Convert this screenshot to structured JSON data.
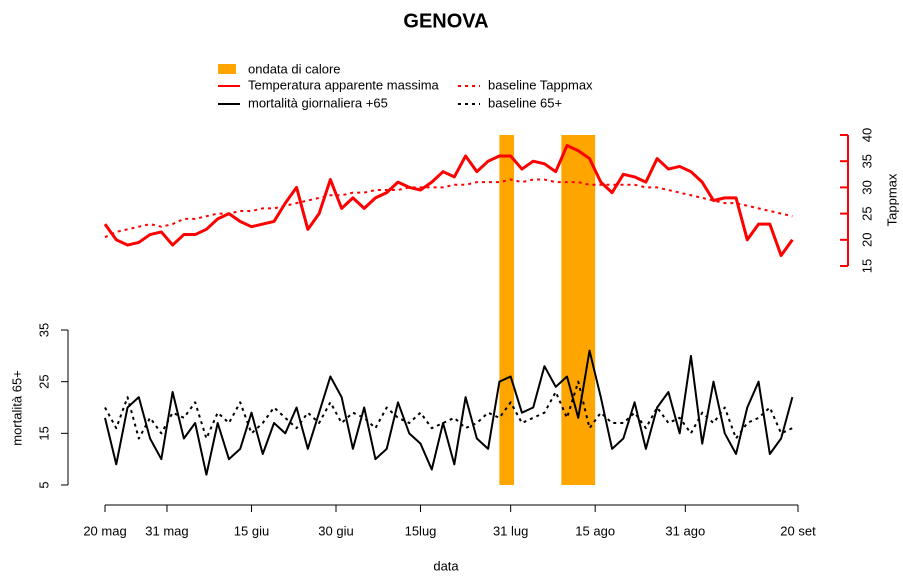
{
  "chart_data": {
    "type": "line",
    "title": "GENOVA",
    "xlabel": "data",
    "ylabel": "mortalità 65+",
    "y2label": "Tappmax",
    "x": [
      0,
      2,
      4,
      6,
      8,
      10,
      12,
      14,
      16,
      18,
      20,
      22,
      24,
      26,
      28,
      30,
      32,
      34,
      36,
      38,
      40,
      42,
      44,
      46,
      48,
      50,
      52,
      54,
      56,
      58,
      60,
      62,
      64,
      66,
      68,
      70,
      72,
      74,
      76,
      78,
      80,
      82,
      84,
      86,
      88,
      90,
      92,
      94,
      96,
      98,
      100,
      102,
      104,
      106,
      108,
      110,
      112,
      114,
      116,
      118,
      120,
      122
    ],
    "xlim": [
      0,
      123
    ],
    "xticks": [
      {
        "value": 0,
        "label": "20 mag"
      },
      {
        "value": 11,
        "label": "31 mag"
      },
      {
        "value": 26,
        "label": "15 giu"
      },
      {
        "value": 41,
        "label": "30 giu"
      },
      {
        "value": 56,
        "label": "15lug"
      },
      {
        "value": 72,
        "label": "31 lug"
      },
      {
        "value": 87,
        "label": "15 ago"
      },
      {
        "value": 103,
        "label": "31 ago"
      },
      {
        "value": 123,
        "label": "20 set"
      }
    ],
    "ylim": [
      5,
      35
    ],
    "yticks": [
      5,
      15,
      25,
      35
    ],
    "y2lim": [
      15,
      40
    ],
    "y2ticks": [
      15,
      20,
      25,
      30,
      35,
      40
    ],
    "y2color": "#ff0000",
    "heatwaves": {
      "name": "ondata di calore",
      "color": "#ffa500",
      "ranges": [
        [
          70,
          72.6
        ],
        [
          81,
          87
        ]
      ]
    },
    "series": [
      {
        "name": "Temperatura apparente massima",
        "color": "#ff0000",
        "axis": "y2",
        "dash": false,
        "values": [
          23,
          20,
          19,
          19.5,
          21,
          21.5,
          19,
          21,
          21,
          22,
          24,
          25,
          23.5,
          22.5,
          23,
          23.5,
          27,
          30,
          22,
          25,
          31.5,
          26,
          28,
          26,
          28,
          29,
          31,
          30,
          29.5,
          31,
          33,
          32,
          36,
          33,
          35,
          36,
          36,
          33.5,
          35,
          34.5,
          33,
          38,
          37,
          35.5,
          31,
          29,
          32.5,
          32,
          31,
          35.5,
          33.5,
          34,
          33,
          31,
          27.5,
          28,
          28,
          20,
          23,
          23,
          17,
          20
        ]
      },
      {
        "name": "mortalità giornaliera +65",
        "color": "#000000",
        "axis": "y",
        "dash": false,
        "values": [
          18,
          9,
          20,
          22,
          14,
          10,
          23,
          14,
          17,
          7,
          17,
          10,
          12,
          19,
          11,
          17,
          15,
          20,
          12,
          19,
          26,
          22,
          12,
          20,
          10,
          12,
          21,
          15,
          13,
          8,
          17,
          9,
          22,
          14,
          12,
          25,
          26,
          19,
          20,
          28,
          24,
          26,
          18,
          31,
          22,
          12,
          14,
          21,
          12,
          20,
          23,
          15,
          30,
          13,
          25,
          15,
          11,
          20,
          25,
          11,
          14,
          22
        ]
      },
      {
        "name": "baseline Tappmax",
        "color": "#ff0000",
        "axis": "y2",
        "dash": true,
        "values": [
          20.5,
          21.5,
          22,
          22.5,
          23,
          22.5,
          23,
          24,
          24,
          24.5,
          25,
          25,
          25.5,
          25.5,
          26,
          26,
          26.5,
          27,
          27.5,
          28,
          28.5,
          28.5,
          29,
          29,
          29.5,
          29.5,
          29.5,
          30,
          30,
          30,
          30,
          30.5,
          30.5,
          31,
          31,
          31,
          31.5,
          31,
          31.5,
          31.5,
          31,
          31,
          31,
          30.5,
          30.5,
          30.5,
          30.5,
          30.5,
          30,
          30,
          29.5,
          29,
          28.5,
          28,
          27.5,
          27,
          27,
          26.5,
          26,
          25.5,
          25,
          24.5
        ]
      },
      {
        "name": "baseline 65+",
        "color": "#000000",
        "axis": "y",
        "dash": true,
        "values": [
          20,
          16,
          22,
          14,
          18,
          15,
          19,
          18,
          21,
          14,
          19,
          17,
          21,
          15,
          17,
          20,
          18,
          16,
          19,
          17,
          21,
          17,
          19,
          18,
          16,
          20,
          18,
          17,
          19,
          16,
          17,
          18,
          16,
          17,
          19,
          18,
          21,
          17,
          18,
          19,
          23,
          18,
          25,
          16,
          19,
          17,
          17,
          19,
          16,
          20,
          17,
          18,
          15,
          19,
          17,
          20,
          14,
          17,
          18,
          20,
          15,
          16
        ]
      }
    ]
  }
}
